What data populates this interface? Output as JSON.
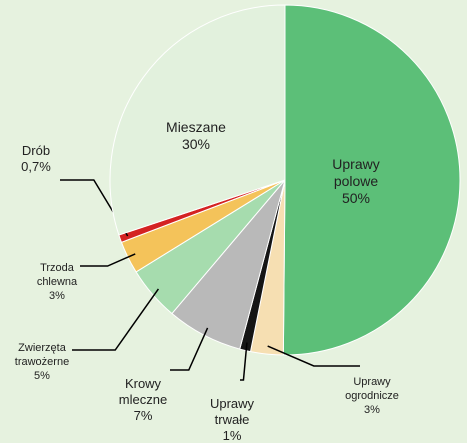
{
  "chart_data": {
    "type": "pie",
    "categories": [
      [
        "Uprawy",
        "polowe"
      ],
      [
        "Uprawy",
        "ogrodnicze"
      ],
      [
        "Uprawy",
        "trwałe"
      ],
      [
        "Krowy",
        "mleczne"
      ],
      [
        "Zwierzęta",
        "trawożerne"
      ],
      [
        "Trzoda",
        "chlewna"
      ],
      [
        "Drób"
      ],
      [
        "Mieszane"
      ]
    ],
    "values": [
      50,
      3,
      1,
      7,
      5,
      3,
      0.7,
      30
    ],
    "value_labels": [
      "50%",
      "3%",
      "1%",
      "7%",
      "5%",
      "3%",
      "0,7%",
      "30%"
    ],
    "colors": [
      "#5cbf78",
      "#f6dfb2",
      "#151515",
      "#b9b9b9",
      "#a6dcae",
      "#f4c35a",
      "#d42222",
      "#e2f1dd"
    ]
  }
}
